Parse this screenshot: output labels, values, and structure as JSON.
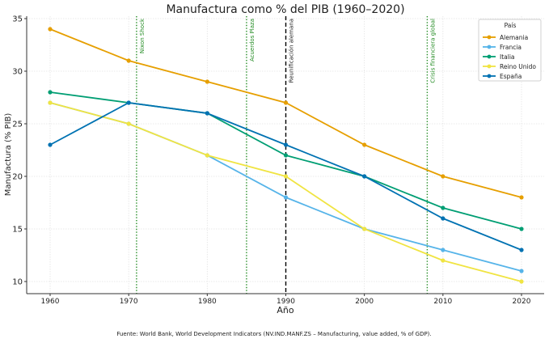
{
  "chart_data": {
    "type": "line",
    "title": "Manufactura como % del PIB (1960–2020)",
    "xlabel": "Año",
    "ylabel": "Manufactura (% PIB)",
    "x": [
      1960,
      1970,
      1980,
      1990,
      2000,
      2010,
      2020
    ],
    "xlim": [
      1957,
      2023
    ],
    "ylim": [
      9,
      35.2
    ],
    "xticks": [
      1960,
      1970,
      1980,
      1990,
      2000,
      2010,
      2020
    ],
    "yticks": [
      10,
      15,
      20,
      25,
      30,
      35
    ],
    "grid": true,
    "series": [
      {
        "name": "Alemania",
        "color": "#E69F00",
        "values": [
          34,
          31,
          29,
          27,
          23,
          20,
          18
        ]
      },
      {
        "name": "Francia",
        "color": "#56B4E9",
        "values": [
          27,
          25,
          22,
          18,
          15,
          13,
          11
        ]
      },
      {
        "name": "Italia",
        "color": "#009E73",
        "values": [
          28,
          27,
          26,
          22,
          20,
          17,
          15
        ]
      },
      {
        "name": "Reino Unido",
        "color": "#F0E442",
        "values": [
          27,
          25,
          22,
          20,
          15,
          12,
          10
        ]
      },
      {
        "name": "España",
        "color": "#0072B2",
        "values": [
          23,
          27,
          26,
          23,
          20,
          16,
          13
        ]
      }
    ],
    "legend": {
      "title": "País",
      "placement": "top-right"
    },
    "annotations": [
      {
        "x": 1971,
        "label": "Nixon Shock",
        "style": "dotted",
        "color": "#228B22"
      },
      {
        "x": 1985,
        "label": "Acuerdos Plaza",
        "style": "dotted",
        "color": "#228B22"
      },
      {
        "x": 1990,
        "label": "Reunificación alemana",
        "style": "dashed",
        "color": "#000000"
      },
      {
        "x": 2008,
        "label": "Crisis financiera global",
        "style": "dotted",
        "color": "#228B22"
      }
    ],
    "footnote": "Fuente: World Bank, World Development Indicators (NV.IND.MANF.ZS – Manufacturing, value added, % of GDP)."
  }
}
